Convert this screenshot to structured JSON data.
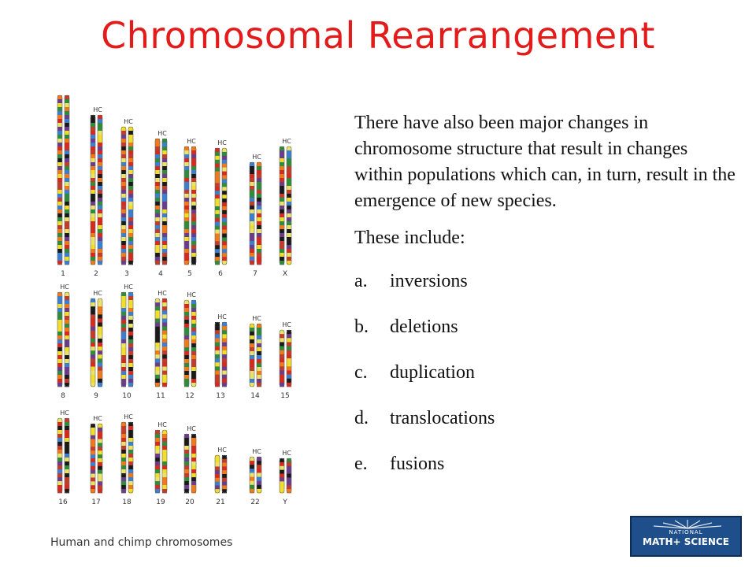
{
  "slide": {
    "title": "Chromosomal Rearrangement",
    "paragraphs": [
      "There have also been major changes in chromosome structure that result in changes within populations which can, in turn, result in the emergence of new species.",
      "These include:"
    ],
    "list": [
      {
        "marker": "a.",
        "text": "inversions"
      },
      {
        "marker": "b.",
        "text": "deletions"
      },
      {
        "marker": "c.",
        "text": "duplication"
      },
      {
        "marker": "d.",
        "text": "translocations"
      },
      {
        "marker": "e.",
        "text": "fusions"
      }
    ]
  },
  "figure": {
    "caption": "Human and chimp chromosomes",
    "pair_label": "HC",
    "rows": [
      {
        "labels": [
          "1",
          "2",
          "3",
          "4",
          "5",
          "6",
          "7",
          "X"
        ]
      },
      {
        "labels": [
          "8",
          "9",
          "10",
          "11",
          "12",
          "13",
          "14",
          "15"
        ]
      },
      {
        "labels": [
          "16",
          "17",
          "18",
          "19",
          "20",
          "21",
          "22",
          "Y"
        ]
      }
    ],
    "band_colors": [
      "#d62a1e",
      "#f1dd2b",
      "#2e8c3a",
      "#3b7fd1",
      "#f07a1a",
      "#6b3b8c",
      "#1a1a1a",
      "#e9e36b",
      "#c23b2b"
    ]
  },
  "logo": {
    "line1": "NATIONAL",
    "line2": "MATH+ SCIENCE"
  }
}
